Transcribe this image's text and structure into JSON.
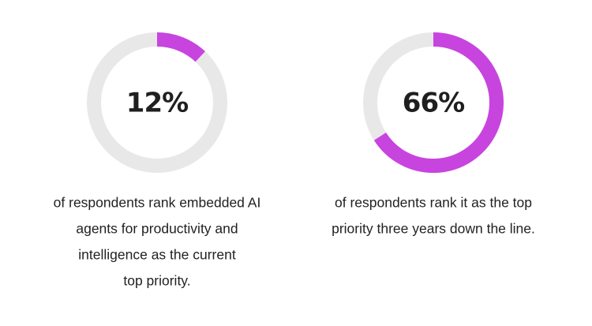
{
  "chart_data": [
    {
      "type": "donut",
      "values": [
        12
      ],
      "value_labels": [
        "12%"
      ],
      "ylim": [
        0,
        100
      ],
      "color": "#c844df",
      "track_color": "#e8e8e8",
      "caption": [
        "of respondents rank embedded AI",
        "agents for productivity and",
        "intelligence as the current",
        "top priority."
      ]
    },
    {
      "type": "donut",
      "values": [
        66
      ],
      "value_labels": [
        "66%"
      ],
      "ylim": [
        0,
        100
      ],
      "color": "#c844df",
      "track_color": "#e8e8e8",
      "caption": [
        "of respondents rank it as the top",
        "priority three years down the line."
      ]
    }
  ]
}
